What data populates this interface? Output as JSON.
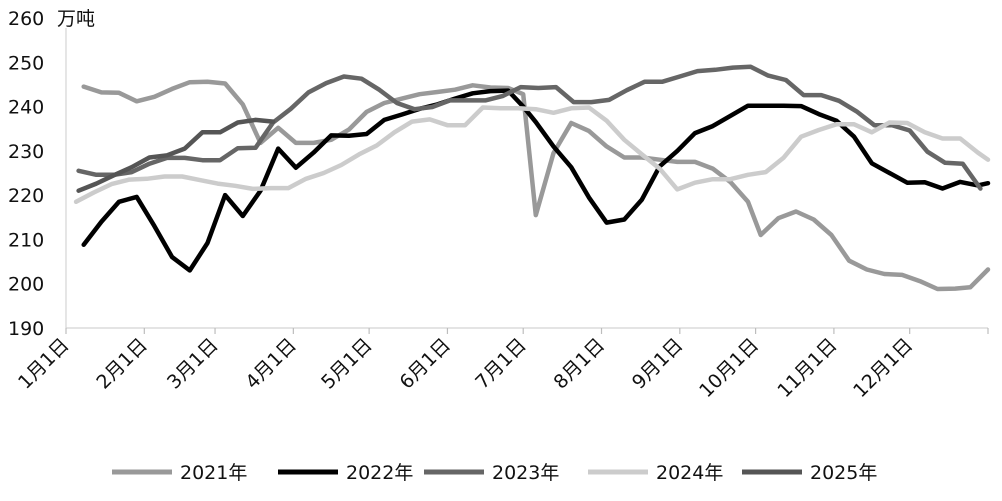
{
  "chart_data": {
    "type": "line",
    "unit_label": "万吨",
    "ylim": [
      190,
      260
    ],
    "yticks": [
      190,
      200,
      210,
      220,
      230,
      240,
      250,
      260
    ],
    "xlim": [
      0,
      365
    ],
    "x_ticks": [
      {
        "label": "1月1日",
        "day": 0
      },
      {
        "label": "2月1日",
        "day": 31
      },
      {
        "label": "3月1日",
        "day": 59
      },
      {
        "label": "4月1日",
        "day": 90
      },
      {
        "label": "5月1日",
        "day": 120
      },
      {
        "label": "6月1日",
        "day": 151
      },
      {
        "label": "7月1日",
        "day": 181
      },
      {
        "label": "8月1日",
        "day": 212
      },
      {
        "label": "9月1日",
        "day": 243
      },
      {
        "label": "10月1日",
        "day": 273
      },
      {
        "label": "11月1日",
        "day": 304
      },
      {
        "label": "12月1日",
        "day": 334
      }
    ],
    "grid": false,
    "legend_position": "bottom",
    "series": [
      {
        "name": "2021年",
        "color": "#999999",
        "points": [
          [
            7,
            244.5
          ],
          [
            14,
            243.2
          ],
          [
            21,
            243.1
          ],
          [
            28,
            241.2
          ],
          [
            35,
            242.2
          ],
          [
            42,
            244
          ],
          [
            49,
            245.5
          ],
          [
            56,
            245.6
          ],
          [
            63,
            245.2
          ],
          [
            70,
            240.5
          ],
          [
            77,
            231.8
          ],
          [
            84,
            235.2
          ],
          [
            91,
            231.8
          ],
          [
            98,
            231.8
          ],
          [
            105,
            232.5
          ],
          [
            112,
            234.8
          ],
          [
            119,
            238.8
          ],
          [
            126,
            240.8
          ],
          [
            133,
            241.8
          ],
          [
            140,
            242.8
          ],
          [
            147,
            243.3
          ],
          [
            154,
            243.8
          ],
          [
            161,
            244.8
          ],
          [
            168,
            244.3
          ],
          [
            175,
            244.2
          ],
          [
            181,
            242.8
          ],
          [
            186,
            215.5
          ],
          [
            193,
            229.5
          ],
          [
            200,
            236.3
          ],
          [
            207,
            234.5
          ],
          [
            214,
            231
          ],
          [
            221,
            228.5
          ],
          [
            228,
            228.5
          ],
          [
            235,
            228
          ],
          [
            242,
            227.5
          ],
          [
            249,
            227.5
          ],
          [
            256,
            226
          ],
          [
            263,
            223
          ],
          [
            270,
            218.5
          ],
          [
            275,
            211
          ],
          [
            282,
            214.8
          ],
          [
            289,
            216.3
          ],
          [
            296,
            214.5
          ],
          [
            303,
            211
          ],
          [
            310,
            205.2
          ],
          [
            317,
            203.2
          ],
          [
            324,
            202.2
          ],
          [
            331,
            202
          ],
          [
            338,
            200.6
          ],
          [
            345,
            198.8
          ],
          [
            352,
            198.9
          ],
          [
            358,
            199.2
          ],
          [
            365,
            203.2
          ]
        ]
      },
      {
        "name": "2022年",
        "color": "#000000",
        "points": [
          [
            7,
            208.8
          ],
          [
            14,
            214
          ],
          [
            21,
            218.5
          ],
          [
            28,
            219.6
          ],
          [
            35,
            213
          ],
          [
            42,
            206
          ],
          [
            49,
            203
          ],
          [
            56,
            209.2
          ],
          [
            63,
            220
          ],
          [
            70,
            215.3
          ],
          [
            77,
            221
          ],
          [
            84,
            230.5
          ],
          [
            91,
            226.2
          ],
          [
            98,
            229.6
          ],
          [
            105,
            233.5
          ],
          [
            112,
            233.4
          ],
          [
            119,
            233.8
          ],
          [
            126,
            237
          ],
          [
            133,
            238.2
          ],
          [
            140,
            239.5
          ],
          [
            147,
            240.5
          ],
          [
            154,
            241.8
          ],
          [
            161,
            243
          ],
          [
            168,
            243.5
          ],
          [
            175,
            243.6
          ],
          [
            181,
            240
          ],
          [
            186,
            236.5
          ],
          [
            193,
            231
          ],
          [
            200,
            226.3
          ],
          [
            207,
            219.5
          ],
          [
            214,
            213.8
          ],
          [
            221,
            214.5
          ],
          [
            228,
            219
          ],
          [
            235,
            226.5
          ],
          [
            242,
            230
          ],
          [
            249,
            234
          ],
          [
            256,
            235.6
          ],
          [
            263,
            237.9
          ],
          [
            270,
            240.2
          ],
          [
            277,
            240.2
          ],
          [
            284,
            240.2
          ],
          [
            291,
            240.1
          ],
          [
            298,
            238.3
          ],
          [
            305,
            236.8
          ],
          [
            312,
            233.2
          ],
          [
            319,
            227.2
          ],
          [
            326,
            225
          ],
          [
            333,
            222.8
          ],
          [
            340,
            222.9
          ],
          [
            347,
            221.5
          ],
          [
            354,
            223
          ],
          [
            361,
            222.2
          ],
          [
            365,
            222.7
          ]
        ]
      },
      {
        "name": "2023年",
        "color": "#666666",
        "points": [
          [
            5,
            225.5
          ],
          [
            12,
            224.6
          ],
          [
            19,
            224.6
          ],
          [
            26,
            225.2
          ],
          [
            33,
            227.1
          ],
          [
            40,
            228.4
          ],
          [
            47,
            228.4
          ],
          [
            54,
            227.9
          ],
          [
            61,
            227.9
          ],
          [
            68,
            230.6
          ],
          [
            75,
            230.7
          ],
          [
            82,
            236.4
          ],
          [
            89,
            239.5
          ],
          [
            96,
            243.2
          ],
          [
            103,
            245.3
          ],
          [
            110,
            246.8
          ],
          [
            117,
            246.3
          ],
          [
            124,
            243.8
          ],
          [
            131,
            240.8
          ],
          [
            138,
            239.4
          ],
          [
            145,
            239.9
          ],
          [
            152,
            241.4
          ],
          [
            159,
            241.4
          ],
          [
            166,
            241.4
          ],
          [
            173,
            242.4
          ],
          [
            180,
            244.4
          ],
          [
            187,
            244.2
          ],
          [
            194,
            244.4
          ],
          [
            201,
            241
          ],
          [
            208,
            241
          ],
          [
            215,
            241.5
          ],
          [
            222,
            243.7
          ],
          [
            229,
            245.6
          ],
          [
            236,
            245.6
          ],
          [
            243,
            246.8
          ],
          [
            250,
            248
          ],
          [
            257,
            248.3
          ],
          [
            264,
            248.8
          ],
          [
            271,
            249
          ],
          [
            278,
            247
          ],
          [
            285,
            246
          ],
          [
            292,
            242.6
          ],
          [
            299,
            242.6
          ],
          [
            306,
            241.3
          ],
          [
            313,
            238.9
          ],
          [
            320,
            235.8
          ],
          [
            327,
            235.8
          ],
          [
            334,
            234.6
          ],
          [
            341,
            229.8
          ],
          [
            348,
            227.3
          ],
          [
            355,
            227.1
          ],
          [
            362,
            221.5
          ]
        ]
      },
      {
        "name": "2024年",
        "color": "#cccccc",
        "points": [
          [
            4,
            218.5
          ],
          [
            11,
            220.6
          ],
          [
            18,
            222.5
          ],
          [
            25,
            223.5
          ],
          [
            32,
            223.7
          ],
          [
            39,
            224.2
          ],
          [
            46,
            224.2
          ],
          [
            53,
            223.4
          ],
          [
            60,
            222.6
          ],
          [
            67,
            222.1
          ],
          [
            74,
            221.4
          ],
          [
            81,
            221.6
          ],
          [
            88,
            221.6
          ],
          [
            95,
            223.7
          ],
          [
            102,
            225
          ],
          [
            109,
            226.8
          ],
          [
            116,
            229.2
          ],
          [
            123,
            231.2
          ],
          [
            130,
            234.2
          ],
          [
            137,
            236.6
          ],
          [
            144,
            237.1
          ],
          [
            151,
            235.8
          ],
          [
            158,
            235.8
          ],
          [
            165,
            239.8
          ],
          [
            172,
            239.6
          ],
          [
            179,
            239.6
          ],
          [
            186,
            239.4
          ],
          [
            193,
            238.6
          ],
          [
            200,
            239.6
          ],
          [
            207,
            239.8
          ],
          [
            214,
            236.8
          ],
          [
            221,
            232.5
          ],
          [
            228,
            229.2
          ],
          [
            235,
            226
          ],
          [
            242,
            221.3
          ],
          [
            249,
            222.8
          ],
          [
            256,
            223.6
          ],
          [
            263,
            223.6
          ],
          [
            270,
            224.6
          ],
          [
            277,
            225.2
          ],
          [
            284,
            228.4
          ],
          [
            291,
            233.2
          ],
          [
            298,
            234.7
          ],
          [
            305,
            236
          ],
          [
            312,
            236
          ],
          [
            319,
            234.2
          ],
          [
            326,
            236.4
          ],
          [
            333,
            236.3
          ],
          [
            340,
            234.2
          ],
          [
            347,
            232.8
          ],
          [
            354,
            232.8
          ],
          [
            361,
            229.6
          ],
          [
            365,
            228
          ]
        ]
      },
      {
        "name": "2025年",
        "color": "#555555",
        "points": [
          [
            5,
            221
          ],
          [
            12,
            222.6
          ],
          [
            19,
            224.5
          ],
          [
            26,
            226.3
          ],
          [
            33,
            228.5
          ],
          [
            40,
            229
          ],
          [
            47,
            230.5
          ],
          [
            54,
            234.2
          ],
          [
            61,
            234.2
          ],
          [
            68,
            236.4
          ],
          [
            75,
            237
          ],
          [
            82,
            236.6
          ]
        ]
      }
    ]
  }
}
